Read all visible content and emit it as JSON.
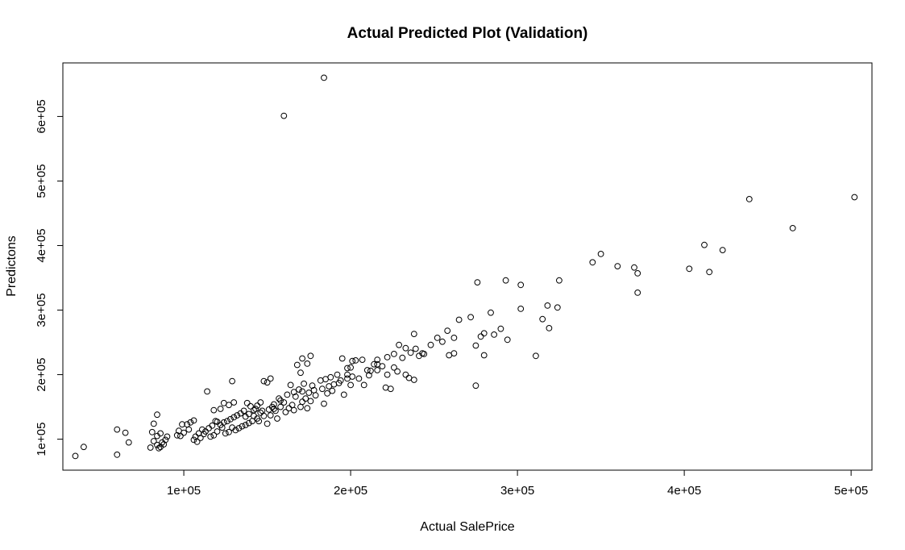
{
  "chart_data": {
    "type": "scatter",
    "title": "Actual Predicted Plot (Validation)",
    "xlabel": "Actual SalePrice",
    "ylabel": "Predictons",
    "xlim": [
      27500,
      512500
    ],
    "ylim": [
      52000,
      683000
    ],
    "x_ticks": [
      {
        "value": 100000,
        "label": "1e+05"
      },
      {
        "value": 200000,
        "label": "2e+05"
      },
      {
        "value": 300000,
        "label": "3e+05"
      },
      {
        "value": 400000,
        "label": "4e+05"
      },
      {
        "value": 500000,
        "label": "5e+05"
      }
    ],
    "y_ticks": [
      {
        "value": 100000,
        "label": "1e+05"
      },
      {
        "value": 200000,
        "label": "2e+05"
      },
      {
        "value": 300000,
        "label": "3e+05"
      },
      {
        "value": 400000,
        "label": "4e+05"
      },
      {
        "value": 500000,
        "label": "5e+05"
      },
      {
        "value": 600000,
        "label": "6e+05"
      }
    ],
    "grid": false,
    "marker": "open-circle",
    "points": [
      [
        184000,
        660000
      ],
      [
        160000,
        601000
      ],
      [
        439000,
        472000
      ],
      [
        502000,
        475000
      ],
      [
        465000,
        427000
      ],
      [
        412000,
        401000
      ],
      [
        423000,
        393000
      ],
      [
        403000,
        364000
      ],
      [
        415000,
        359000
      ],
      [
        350000,
        387000
      ],
      [
        345000,
        374000
      ],
      [
        360000,
        368000
      ],
      [
        370000,
        366000
      ],
      [
        372000,
        357000
      ],
      [
        372000,
        327000
      ],
      [
        293000,
        346000
      ],
      [
        276000,
        343000
      ],
      [
        302000,
        339000
      ],
      [
        325000,
        346000
      ],
      [
        318000,
        307000
      ],
      [
        324000,
        304000
      ],
      [
        302000,
        302000
      ],
      [
        315000,
        286000
      ],
      [
        319000,
        272000
      ],
      [
        284000,
        296000
      ],
      [
        272000,
        289000
      ],
      [
        265000,
        285000
      ],
      [
        290000,
        271000
      ],
      [
        286000,
        262000
      ],
      [
        294000,
        254000
      ],
      [
        278000,
        259000
      ],
      [
        280000,
        264000
      ],
      [
        275000,
        245000
      ],
      [
        280000,
        230000
      ],
      [
        311000,
        229000
      ],
      [
        275000,
        183000
      ],
      [
        258000,
        268000
      ],
      [
        252000,
        257000
      ],
      [
        255000,
        251000
      ],
      [
        262000,
        257000
      ],
      [
        248000,
        246000
      ],
      [
        262000,
        233000
      ],
      [
        259000,
        230000
      ],
      [
        243000,
        233000
      ],
      [
        238000,
        263000
      ],
      [
        229000,
        246000
      ],
      [
        233000,
        241000
      ],
      [
        239000,
        240000
      ],
      [
        236000,
        234000
      ],
      [
        241000,
        229000
      ],
      [
        244000,
        232000
      ],
      [
        226000,
        232000
      ],
      [
        231000,
        226000
      ],
      [
        222000,
        227000
      ],
      [
        219000,
        213000
      ],
      [
        216000,
        207000
      ],
      [
        214000,
        216000
      ],
      [
        216000,
        223000
      ],
      [
        210000,
        207000
      ],
      [
        212000,
        206000
      ],
      [
        226000,
        211000
      ],
      [
        228000,
        205000
      ],
      [
        222000,
        200000
      ],
      [
        233000,
        200000
      ],
      [
        238000,
        192000
      ],
      [
        235000,
        195000
      ],
      [
        224000,
        178000
      ],
      [
        221000,
        180000
      ],
      [
        208000,
        184000
      ],
      [
        203000,
        222000
      ],
      [
        201000,
        221000
      ],
      [
        207000,
        223000
      ],
      [
        198000,
        210000
      ],
      [
        195000,
        225000
      ],
      [
        200000,
        211000
      ],
      [
        201000,
        197000
      ],
      [
        198000,
        194000
      ],
      [
        193000,
        187000
      ],
      [
        192000,
        200000
      ],
      [
        200000,
        184000
      ],
      [
        196000,
        169000
      ],
      [
        188000,
        196000
      ],
      [
        185000,
        193000
      ],
      [
        182000,
        191000
      ],
      [
        187000,
        182000
      ],
      [
        186000,
        171000
      ],
      [
        184000,
        155000
      ],
      [
        190000,
        185000
      ],
      [
        176000,
        229000
      ],
      [
        171000,
        225000
      ],
      [
        174000,
        217000
      ],
      [
        168000,
        215000
      ],
      [
        170000,
        203000
      ],
      [
        177000,
        183000
      ],
      [
        172000,
        186000
      ],
      [
        164000,
        184000
      ],
      [
        169000,
        177000
      ],
      [
        166000,
        173000
      ],
      [
        171000,
        174000
      ],
      [
        175000,
        172000
      ],
      [
        178000,
        176000
      ],
      [
        162000,
        169000
      ],
      [
        167000,
        166000
      ],
      [
        173000,
        163000
      ],
      [
        176000,
        159000
      ],
      [
        160000,
        157000
      ],
      [
        165000,
        153000
      ],
      [
        170000,
        150000
      ],
      [
        174000,
        148000
      ],
      [
        161000,
        142000
      ],
      [
        158000,
        160000
      ],
      [
        154000,
        154000
      ],
      [
        155000,
        144000
      ],
      [
        152000,
        137000
      ],
      [
        156000,
        132000
      ],
      [
        151000,
        146000
      ],
      [
        153000,
        150000
      ],
      [
        150000,
        188000
      ],
      [
        152000,
        194000
      ],
      [
        148000,
        190000
      ],
      [
        146000,
        157000
      ],
      [
        144000,
        152000
      ],
      [
        142000,
        145000
      ],
      [
        140000,
        151000
      ],
      [
        138000,
        156000
      ],
      [
        136000,
        144000
      ],
      [
        134000,
        140000
      ],
      [
        132000,
        137000
      ],
      [
        130000,
        134000
      ],
      [
        128000,
        131000
      ],
      [
        126000,
        128000
      ],
      [
        124000,
        126000
      ],
      [
        122000,
        122000
      ],
      [
        120000,
        127000
      ],
      [
        146000,
        141000
      ],
      [
        148000,
        136000
      ],
      [
        144000,
        132000
      ],
      [
        141000,
        128000
      ],
      [
        139000,
        125000
      ],
      [
        137000,
        122000
      ],
      [
        135000,
        120000
      ],
      [
        133000,
        117000
      ],
      [
        131000,
        114000
      ],
      [
        129000,
        118000
      ],
      [
        127000,
        111000
      ],
      [
        125000,
        109000
      ],
      [
        129000,
        190000
      ],
      [
        130000,
        157000
      ],
      [
        127000,
        153000
      ],
      [
        124000,
        156000
      ],
      [
        122000,
        147000
      ],
      [
        118000,
        145000
      ],
      [
        114000,
        174000
      ],
      [
        119000,
        128000
      ],
      [
        117000,
        121000
      ],
      [
        115000,
        117000
      ],
      [
        113000,
        112000
      ],
      [
        111000,
        115000
      ],
      [
        109000,
        109000
      ],
      [
        107000,
        104000
      ],
      [
        108000,
        96000
      ],
      [
        106000,
        99000
      ],
      [
        110000,
        102000
      ],
      [
        112000,
        108000
      ],
      [
        104000,
        126000
      ],
      [
        106000,
        129000
      ],
      [
        102000,
        123000
      ],
      [
        99000,
        123000
      ],
      [
        97000,
        113000
      ],
      [
        96000,
        106000
      ],
      [
        98000,
        105000
      ],
      [
        90000,
        104000
      ],
      [
        89000,
        99000
      ],
      [
        87000,
        95000
      ],
      [
        88000,
        92000
      ],
      [
        86000,
        88000
      ],
      [
        85000,
        86000
      ],
      [
        84000,
        91000
      ],
      [
        82000,
        97000
      ],
      [
        80000,
        87000
      ],
      [
        81000,
        111000
      ],
      [
        84000,
        105000
      ],
      [
        86000,
        109000
      ],
      [
        82000,
        124000
      ],
      [
        84000,
        138000
      ],
      [
        60000,
        115000
      ],
      [
        65000,
        110000
      ],
      [
        67000,
        95000
      ],
      [
        60000,
        76000
      ],
      [
        40000,
        88000
      ],
      [
        35000,
        74000
      ],
      [
        100000,
        110000
      ],
      [
        103000,
        115000
      ],
      [
        116000,
        104000
      ],
      [
        118000,
        106000
      ],
      [
        120000,
        112000
      ],
      [
        123000,
        118000
      ],
      [
        142000,
        136000
      ],
      [
        145000,
        128000
      ],
      [
        150000,
        124000
      ],
      [
        157000,
        163000
      ],
      [
        163000,
        148000
      ],
      [
        166000,
        145000
      ],
      [
        171000,
        158000
      ],
      [
        179000,
        168000
      ],
      [
        183000,
        178000
      ],
      [
        189000,
        175000
      ],
      [
        194000,
        191000
      ],
      [
        198000,
        200000
      ],
      [
        205000,
        194000
      ],
      [
        211000,
        199000
      ],
      [
        216000,
        216000
      ],
      [
        137000,
        135000
      ],
      [
        139000,
        139000
      ],
      [
        143000,
        147000
      ],
      [
        147000,
        144000
      ],
      [
        154000,
        147000
      ],
      [
        158000,
        150000
      ]
    ]
  }
}
